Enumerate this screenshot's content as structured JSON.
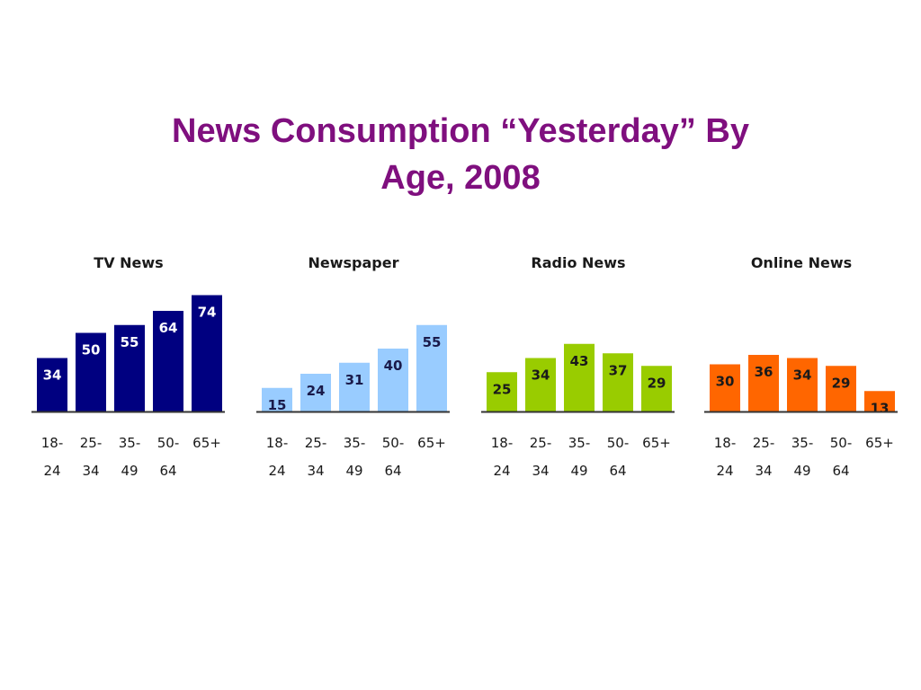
{
  "slide": {
    "title_line1": "News Consumption “Yesterday” By",
    "title_line2": "Age, 2008",
    "title_color": "#7f0f7e"
  },
  "chart_data": [
    {
      "type": "bar",
      "title": "TV News",
      "categories": [
        [
          "18-",
          "24"
        ],
        [
          "25-",
          "34"
        ],
        [
          "35-",
          "49"
        ],
        [
          "50-",
          "64"
        ],
        [
          "65+",
          ""
        ]
      ],
      "values": [
        34,
        50,
        55,
        64,
        74
      ],
      "color": "#000080",
      "label_color": "#ffffff",
      "ylim": [
        0,
        80
      ],
      "grid": false
    },
    {
      "type": "bar",
      "title": "Newspaper",
      "categories": [
        [
          "18-",
          "24"
        ],
        [
          "25-",
          "34"
        ],
        [
          "35-",
          "49"
        ],
        [
          "50-",
          "64"
        ],
        [
          "65+",
          ""
        ]
      ],
      "values": [
        15,
        24,
        31,
        40,
        55
      ],
      "color": "#99ccff",
      "label_color": "#1a1a4a",
      "ylim": [
        0,
        80
      ],
      "grid": false
    },
    {
      "type": "bar",
      "title": "Radio News",
      "categories": [
        [
          "18-",
          "24"
        ],
        [
          "25-",
          "34"
        ],
        [
          "35-",
          "49"
        ],
        [
          "50-",
          "64"
        ],
        [
          "65+",
          ""
        ]
      ],
      "values": [
        25,
        34,
        43,
        37,
        29
      ],
      "color": "#99cc00",
      "label_color": "#1a1a1a",
      "ylim": [
        0,
        80
      ],
      "grid": false
    },
    {
      "type": "bar",
      "title": "Online News",
      "categories": [
        [
          "18-",
          "24"
        ],
        [
          "25-",
          "34"
        ],
        [
          "35-",
          "49"
        ],
        [
          "50-",
          "64"
        ],
        [
          "65+",
          ""
        ]
      ],
      "values": [
        30,
        36,
        34,
        29,
        13
      ],
      "color": "#ff6600",
      "label_color": "#1a1a1a",
      "ylim": [
        0,
        80
      ],
      "grid": false
    }
  ]
}
